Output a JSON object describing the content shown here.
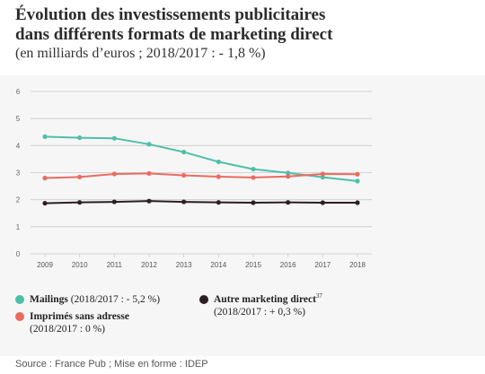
{
  "title_line1": "Évolution des investissements publicitaires",
  "title_line2": "dans différents formats de marketing direct",
  "subtitle": "(en milliards d’euros ; 2018/2017 : - 1,8 %)",
  "source": "Source : France Pub ; Mise en forme : IDEP",
  "legend": {
    "mailings_name": "Mailings",
    "mailings_change": " (2018/2017 : - 5,2 %)",
    "imprimes_name": "Imprimés sans adresse",
    "imprimes_change": "(2018/2017 : 0 %)",
    "autre_name": "Autre marketing direct",
    "autre_note": "37",
    "autre_change": "(2018/2017 : + 0,3 %)"
  },
  "colors": {
    "mailings": "#4dbfa8",
    "imprimes": "#ea6b5f",
    "autre": "#2c1e22",
    "grid": "#c8c8c8",
    "panel": "#f6f6f6"
  },
  "chart_data": {
    "type": "line",
    "x": [
      "2009",
      "2010",
      "2011",
      "2012",
      "2013",
      "2014",
      "2015",
      "2016",
      "2017",
      "2018"
    ],
    "yticks": [
      "0",
      "1",
      "2",
      "3",
      "4",
      "5",
      "6"
    ],
    "ylim": [
      0,
      6
    ],
    "grid": true,
    "legend_position": "bottom",
    "series": [
      {
        "name": "Mailings",
        "color": "#4dbfa8",
        "values": [
          4.33,
          4.29,
          4.27,
          4.05,
          3.76,
          3.4,
          3.13,
          2.99,
          2.83,
          2.69
        ]
      },
      {
        "name": "Imprimés sans adresse",
        "color": "#ea6b5f",
        "values": [
          2.8,
          2.84,
          2.95,
          2.97,
          2.9,
          2.85,
          2.82,
          2.86,
          2.95,
          2.94
        ]
      },
      {
        "name": "Autre marketing direct",
        "color": "#2c1e22",
        "values": [
          1.87,
          1.9,
          1.92,
          1.95,
          1.92,
          1.9,
          1.89,
          1.9,
          1.89,
          1.89
        ]
      }
    ]
  }
}
